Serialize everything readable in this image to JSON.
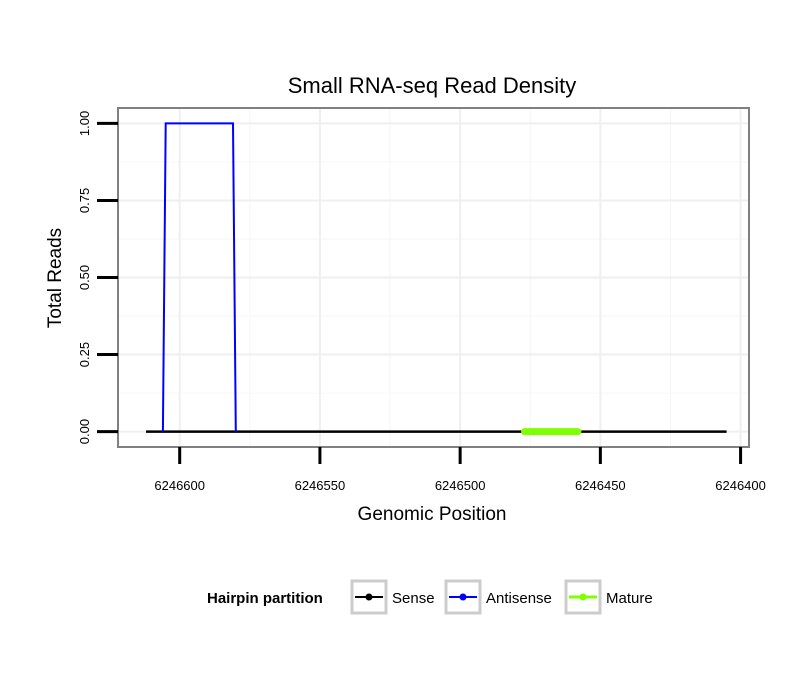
{
  "chart_data": {
    "type": "line",
    "title": "Small RNA-seq Read Density",
    "xlabel": "Genomic Position",
    "ylabel": "Total Reads",
    "x_reversed": true,
    "xlim": [
      6246622,
      6246397
    ],
    "ylim": [
      -0.05,
      1.05
    ],
    "x_ticks": [
      6246600,
      6246550,
      6246500,
      6246450,
      6246400
    ],
    "x_tick_labels": [
      "6246600",
      "6246550",
      "6246500",
      "6246450",
      "6246400"
    ],
    "y_ticks": [
      0,
      0.25,
      0.5,
      0.75,
      1
    ],
    "y_tick_labels": [
      "0.00",
      "0.25",
      "0.50",
      "0.75",
      "1.00"
    ],
    "grid": true,
    "legend_position": "bottom",
    "legend_title": "Hairpin partition",
    "series": [
      {
        "name": "Sense",
        "color": "#000000",
        "x": [
          6246612,
          6246405
        ],
        "y": [
          0,
          0
        ]
      },
      {
        "name": "Antisense",
        "color": "#0000ff",
        "x": [
          6246606,
          6246605,
          6246581,
          6246580
        ],
        "y": [
          0,
          1,
          1,
          0
        ]
      },
      {
        "name": "Mature",
        "color": "#7fff00",
        "x": [
          6246477,
          6246458
        ],
        "y": [
          0,
          0
        ]
      }
    ]
  }
}
